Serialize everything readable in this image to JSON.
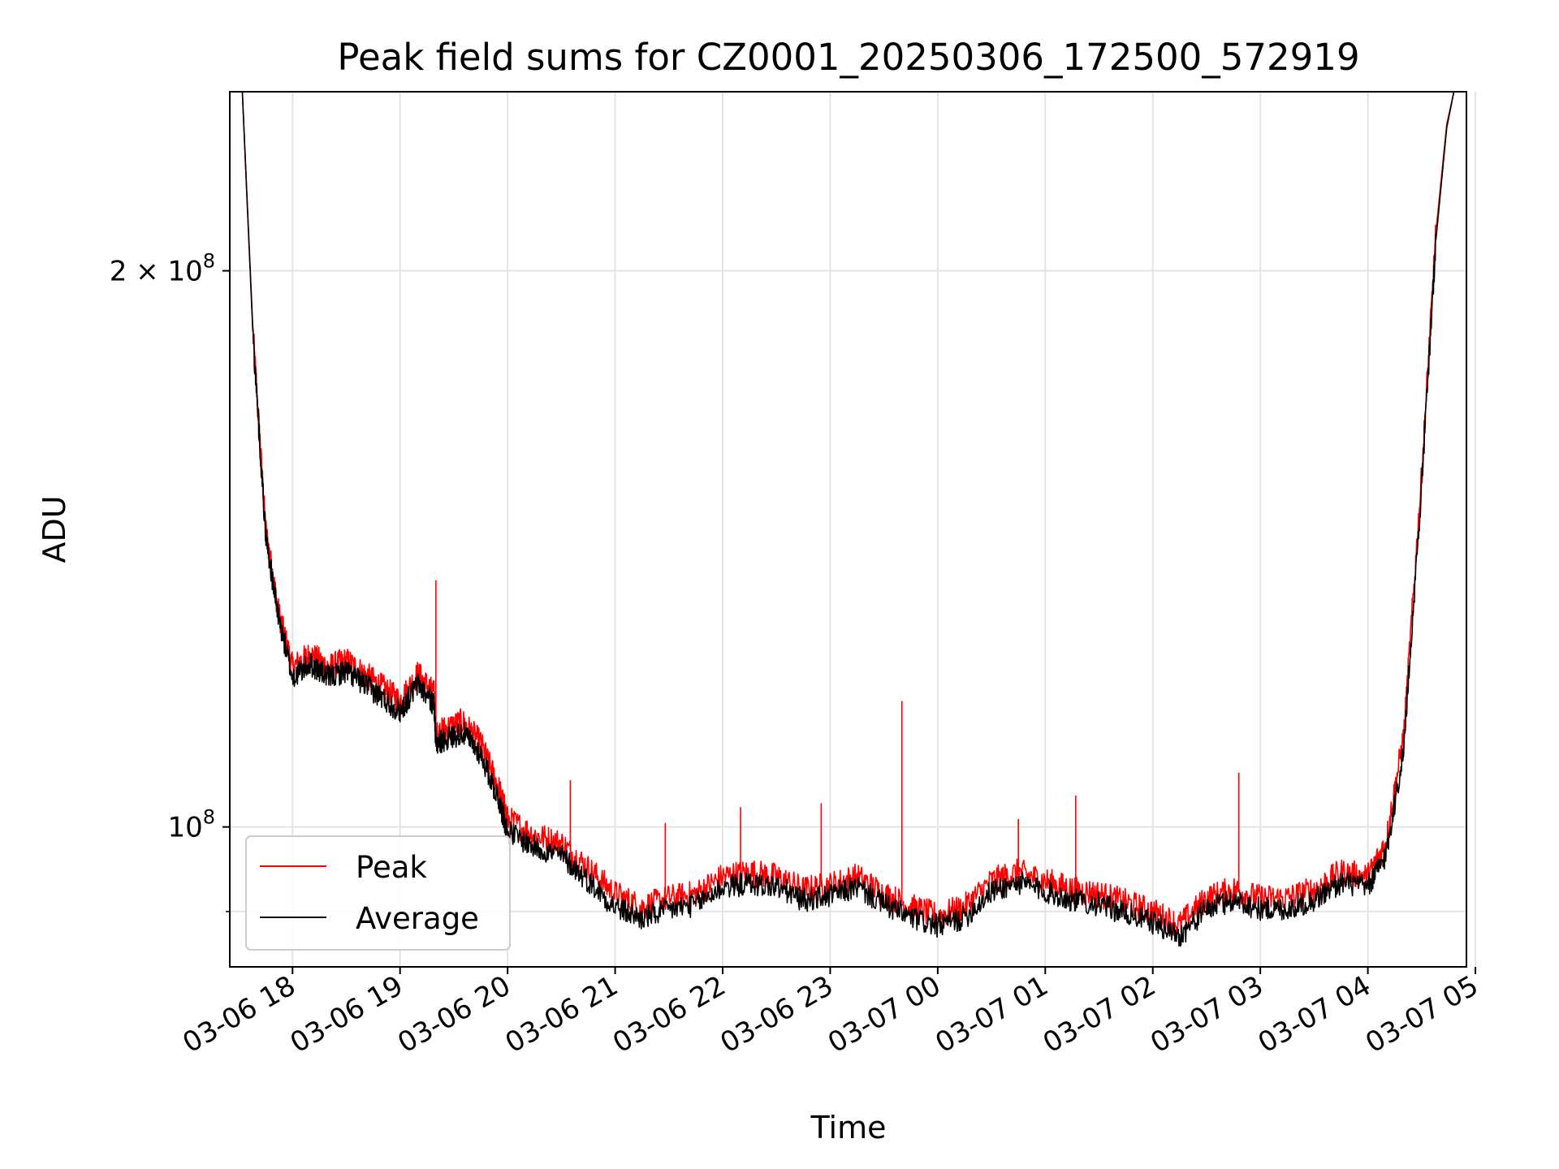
{
  "chart_data": {
    "type": "line",
    "title": "Peak field sums for CZ0001_20250306_172500_572919",
    "xlabel": "Time",
    "ylabel": "ADU",
    "y_scale": "log",
    "ylim": [
      84000000,
      250000000
    ],
    "xlim": [
      "2025-03-06 17:25",
      "2025-03-07 04:55"
    ],
    "x_ticks": [
      "03-06 18",
      "03-06 19",
      "03-06 20",
      "03-06 21",
      "03-06 22",
      "03-06 23",
      "03-07 00",
      "03-07 01",
      "03-07 02",
      "03-07 03",
      "03-07 04",
      "03-07 05"
    ],
    "y_ticks": [
      {
        "value": 200000000,
        "label_base": "2 × 10",
        "label_exp": "8"
      },
      {
        "value": 100000000,
        "label_base": "10",
        "label_exp": "8"
      }
    ],
    "y_minor_ticks": [
      90000000
    ],
    "grid": true,
    "legend_position": "lower left",
    "colors": {
      "peak": "#ff0000",
      "average": "#000000"
    },
    "series": [
      {
        "name": "Peak",
        "color": "#ff0000",
        "x": [
          "2025-03-06 17:25",
          "2025-03-06 17:32",
          "2025-03-06 17:38",
          "2025-03-06 17:45",
          "2025-03-06 17:52",
          "2025-03-06 18:00",
          "2025-03-06 18:10",
          "2025-03-06 18:20",
          "2025-03-06 18:30",
          "2025-03-06 18:40",
          "2025-03-06 18:50",
          "2025-03-06 19:00",
          "2025-03-06 19:10",
          "2025-03-06 19:19",
          "2025-03-06 19:20",
          "2025-03-06 19:25",
          "2025-03-06 19:35",
          "2025-03-06 19:45",
          "2025-03-06 19:55",
          "2025-03-06 20:00",
          "2025-03-06 20:15",
          "2025-03-06 20:30",
          "2025-03-06 20:45",
          "2025-03-06 21:00",
          "2025-03-06 21:15",
          "2025-03-06 21:30",
          "2025-03-06 21:45",
          "2025-03-06 22:00",
          "2025-03-06 22:15",
          "2025-03-06 22:30",
          "2025-03-06 22:45",
          "2025-03-06 23:00",
          "2025-03-06 23:15",
          "2025-03-06 23:30",
          "2025-03-06 23:45",
          "2025-03-07 00:00",
          "2025-03-07 00:15",
          "2025-03-07 00:30",
          "2025-03-07 00:45",
          "2025-03-07 01:00",
          "2025-03-07 01:15",
          "2025-03-07 01:30",
          "2025-03-07 01:45",
          "2025-03-07 02:00",
          "2025-03-07 02:15",
          "2025-03-07 02:30",
          "2025-03-07 02:45",
          "2025-03-07 03:00",
          "2025-03-07 03:15",
          "2025-03-07 03:30",
          "2025-03-07 03:45",
          "2025-03-07 04:00",
          "2025-03-07 04:10",
          "2025-03-07 04:20",
          "2025-03-07 04:30",
          "2025-03-07 04:38",
          "2025-03-07 04:44",
          "2025-03-07 04:48",
          "2025-03-07 04:55"
        ],
        "values": [
          250000000,
          250000000,
          185000000,
          145000000,
          131000000,
          122000000,
          124000000,
          122000000,
          123000000,
          121000000,
          119000000,
          117000000,
          121000000,
          118000000,
          112000000,
          113000000,
          114000000,
          111000000,
          105000000,
          101000000,
          99000000,
          98000000,
          95000000,
          92000000,
          90500000,
          91500000,
          92000000,
          94000000,
          94500000,
          94000000,
          92500000,
          93000000,
          94000000,
          92000000,
          90500000,
          89500000,
          90500000,
          93500000,
          94500000,
          93500000,
          92500000,
          92000000,
          91000000,
          90000000,
          88500000,
          91500000,
          92500000,
          91500000,
          91500000,
          92500000,
          94500000,
          94000000,
          98000000,
          112000000,
          155000000,
          210000000,
          240000000,
          250000000,
          250000000
        ],
        "spikes": [
          {
            "x": "2025-03-06 19:20",
            "value": 136000000
          },
          {
            "x": "2025-03-06 23:40",
            "value": 117000000
          },
          {
            "x": "2025-03-07 02:48",
            "value": 107000000
          },
          {
            "x": "2025-03-07 01:17",
            "value": 104000000
          },
          {
            "x": "2025-03-06 22:55",
            "value": 103000000
          },
          {
            "x": "2025-03-06 22:10",
            "value": 102500000
          },
          {
            "x": "2025-03-06 20:35",
            "value": 106000000
          },
          {
            "x": "2025-03-06 21:28",
            "value": 100500000
          },
          {
            "x": "2025-03-07 00:45",
            "value": 101000000
          }
        ]
      },
      {
        "name": "Average",
        "color": "#000000",
        "x": [
          "2025-03-06 17:25",
          "2025-03-06 17:32",
          "2025-03-06 17:38",
          "2025-03-06 17:45",
          "2025-03-06 17:52",
          "2025-03-06 18:00",
          "2025-03-06 18:10",
          "2025-03-06 18:20",
          "2025-03-06 18:30",
          "2025-03-06 18:40",
          "2025-03-06 18:50",
          "2025-03-06 19:00",
          "2025-03-06 19:10",
          "2025-03-06 19:19",
          "2025-03-06 19:20",
          "2025-03-06 19:25",
          "2025-03-06 19:35",
          "2025-03-06 19:45",
          "2025-03-06 19:55",
          "2025-03-06 20:00",
          "2025-03-06 20:15",
          "2025-03-06 20:30",
          "2025-03-06 20:45",
          "2025-03-06 21:00",
          "2025-03-06 21:15",
          "2025-03-06 21:30",
          "2025-03-06 21:45",
          "2025-03-06 22:00",
          "2025-03-06 22:15",
          "2025-03-06 22:30",
          "2025-03-06 22:45",
          "2025-03-06 23:00",
          "2025-03-06 23:15",
          "2025-03-06 23:30",
          "2025-03-06 23:45",
          "2025-03-07 00:00",
          "2025-03-07 00:15",
          "2025-03-07 00:30",
          "2025-03-07 00:45",
          "2025-03-07 01:00",
          "2025-03-07 01:15",
          "2025-03-07 01:30",
          "2025-03-07 01:45",
          "2025-03-07 02:00",
          "2025-03-07 02:15",
          "2025-03-07 02:30",
          "2025-03-07 02:45",
          "2025-03-07 03:00",
          "2025-03-07 03:15",
          "2025-03-07 03:30",
          "2025-03-07 03:45",
          "2025-03-07 04:00",
          "2025-03-07 04:10",
          "2025-03-07 04:20",
          "2025-03-07 04:30",
          "2025-03-07 04:38",
          "2025-03-07 04:44",
          "2025-03-07 04:48",
          "2025-03-07 04:55"
        ],
        "values": [
          250000000,
          250000000,
          184000000,
          144000000,
          130000000,
          120500000,
          122500000,
          120500000,
          121500000,
          119500000,
          117500000,
          115500000,
          119500000,
          116500000,
          111000000,
          111500000,
          112500000,
          109500000,
          103500000,
          99500000,
          97500000,
          96500000,
          93500000,
          90500000,
          89200000,
          90200000,
          90800000,
          92800000,
          93200000,
          92800000,
          91300000,
          91800000,
          92800000,
          90800000,
          89300000,
          88400000,
          89300000,
          92300000,
          93300000,
          92300000,
          91300000,
          90800000,
          89800000,
          88800000,
          87300000,
          90300000,
          91300000,
          90300000,
          90300000,
          91300000,
          93300000,
          92800000,
          96500000,
          110000000,
          153000000,
          208000000,
          239000000,
          250000000,
          250000000
        ]
      }
    ]
  }
}
